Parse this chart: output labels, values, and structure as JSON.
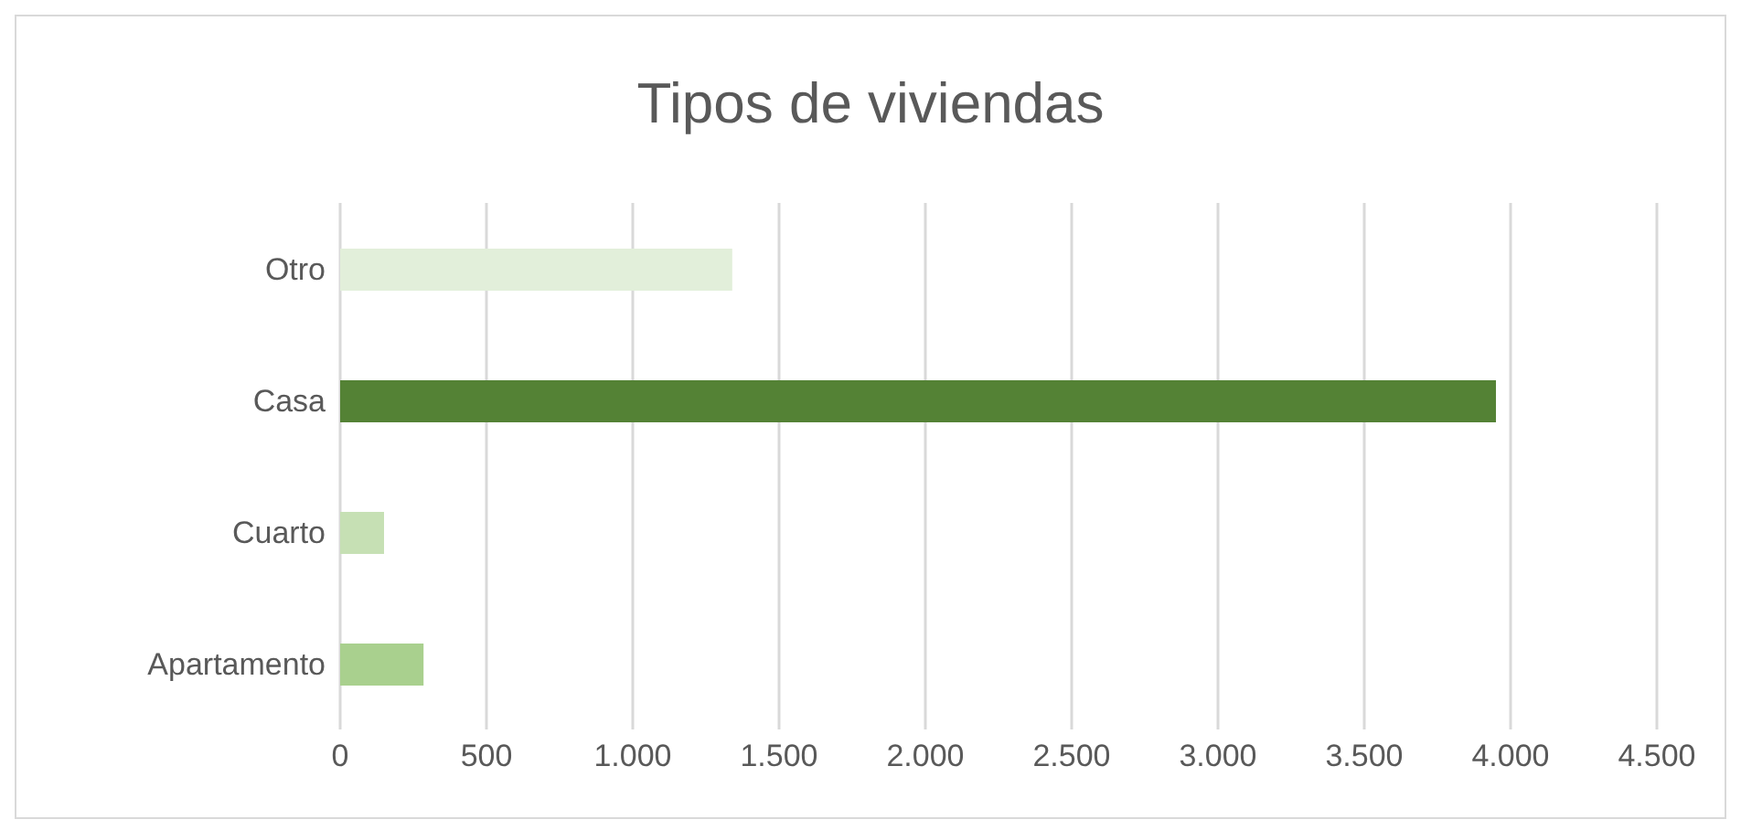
{
  "chart_data": {
    "type": "bar",
    "orientation": "horizontal",
    "title": "Tipos de viviendas",
    "categories": [
      "Otro",
      "Casa",
      "Cuarto",
      "Apartamento"
    ],
    "values": [
      1340,
      3950,
      150,
      285
    ],
    "colors": [
      "#e2efda",
      "#548235",
      "#c6e0b4",
      "#a9d08e"
    ],
    "xlim": [
      0,
      4500
    ],
    "xticks": [
      0,
      500,
      {
        "value": 1000,
        "label": "1.000"
      },
      {
        "value": 1500,
        "label": "1.500"
      },
      {
        "value": 2000,
        "label": "2.000"
      },
      {
        "value": 2500,
        "label": "2.500"
      },
      {
        "value": 3000,
        "label": "3.000"
      },
      {
        "value": 3500,
        "label": "3.500"
      },
      {
        "value": 4000,
        "label": "4.000"
      },
      {
        "value": 4500,
        "label": "4.500"
      }
    ],
    "grid": "x",
    "legend": false
  }
}
